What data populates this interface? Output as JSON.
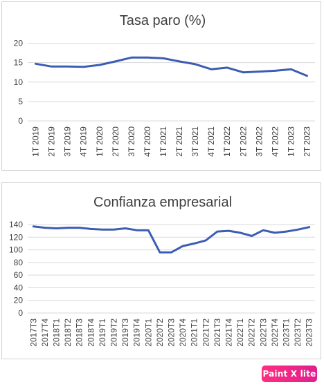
{
  "chart_data": [
    {
      "type": "line",
      "title": "Tasa paro (%)",
      "categories": [
        "1T 2019",
        "2T 2019",
        "3T 2019",
        "4T 2019",
        "1T 2020",
        "2T 2020",
        "3T 2020",
        "4T 2020",
        "1T 2021",
        "2T 2021",
        "3T 2021",
        "4T 2021",
        "1T 2022",
        "2T 2022",
        "3T 2022",
        "4T 2022",
        "1T 2023",
        "2T 2023"
      ],
      "series": [
        {
          "values": [
            14.7,
            14.0,
            14.0,
            13.9,
            14.4,
            15.3,
            16.3,
            16.3,
            16.1,
            15.3,
            14.6,
            13.3,
            13.7,
            12.5,
            12.7,
            12.9,
            13.3,
            11.6
          ]
        }
      ],
      "ylim": [
        0,
        20
      ],
      "yticks": [
        0,
        5,
        10,
        15,
        20
      ],
      "grid": true,
      "color": "#3c5db3"
    },
    {
      "type": "line",
      "title": "Confianza empresarial",
      "categories": [
        "2017T3",
        "2017T4",
        "2018T1",
        "2018T2",
        "2018T3",
        "2018T4",
        "2019T1",
        "2019T2",
        "2019T3",
        "2019T4",
        "2020T1",
        "2020T2",
        "2020T3",
        "2020T4",
        "2021T1",
        "2021T2",
        "2021T3",
        "2021T4",
        "2022T1",
        "2022T2",
        "2022T3",
        "2022T4",
        "2023T1",
        "2023T2",
        "2023T3"
      ],
      "series": [
        {
          "values": [
            137,
            135,
            134,
            135,
            135,
            133,
            132,
            132,
            134,
            131,
            131,
            96,
            96,
            106,
            110,
            115,
            129,
            130,
            127,
            122,
            131,
            127,
            129,
            132,
            136
          ]
        }
      ],
      "ylim": [
        0,
        140
      ],
      "yticks": [
        0,
        20,
        40,
        60,
        80,
        100,
        120,
        140
      ],
      "grid": true,
      "color": "#3c5db3"
    }
  ],
  "watermark": {
    "text": "Paint X lite"
  }
}
